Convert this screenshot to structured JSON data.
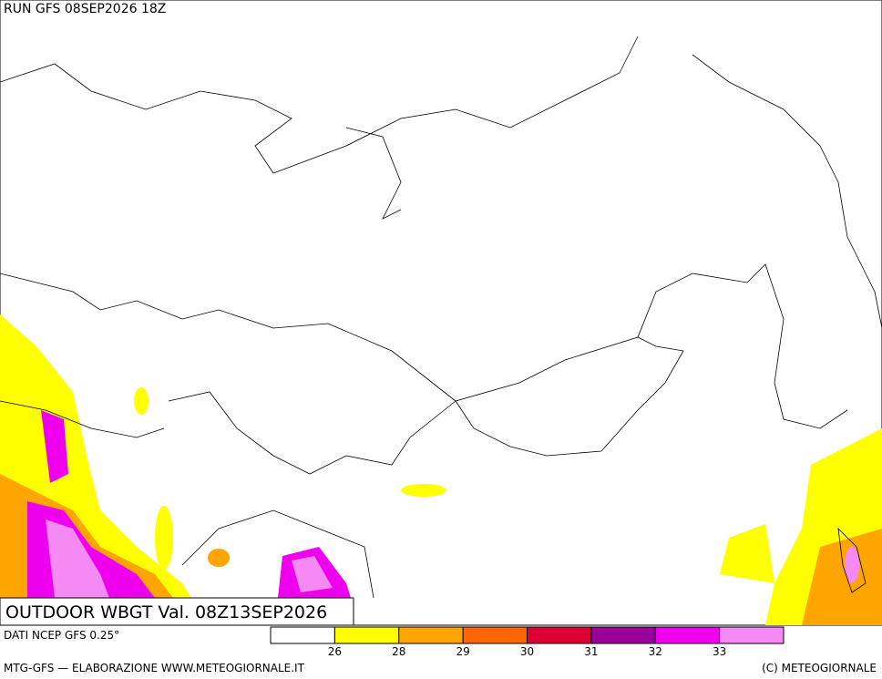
{
  "header": {
    "run": "RUN GFS 08SEP2026 18Z"
  },
  "title": "OUTDOOR WBGT Val. 08Z13SEP2026",
  "source": "DATI NCEP GFS 0.25°",
  "legend": {
    "colors": [
      "#ffffff",
      "#ffff00",
      "#ffa500",
      "#ff6600",
      "#dd0033",
      "#990099",
      "#ee00ee",
      "#f58af5"
    ],
    "labels": [
      26,
      28,
      29,
      30,
      31,
      32,
      33
    ]
  },
  "footer": {
    "left": "MTG-GFS — ELABORAZIONE WWW.METEOGIORNALE.IT",
    "right": "(C) METEOGIORNALE"
  }
}
